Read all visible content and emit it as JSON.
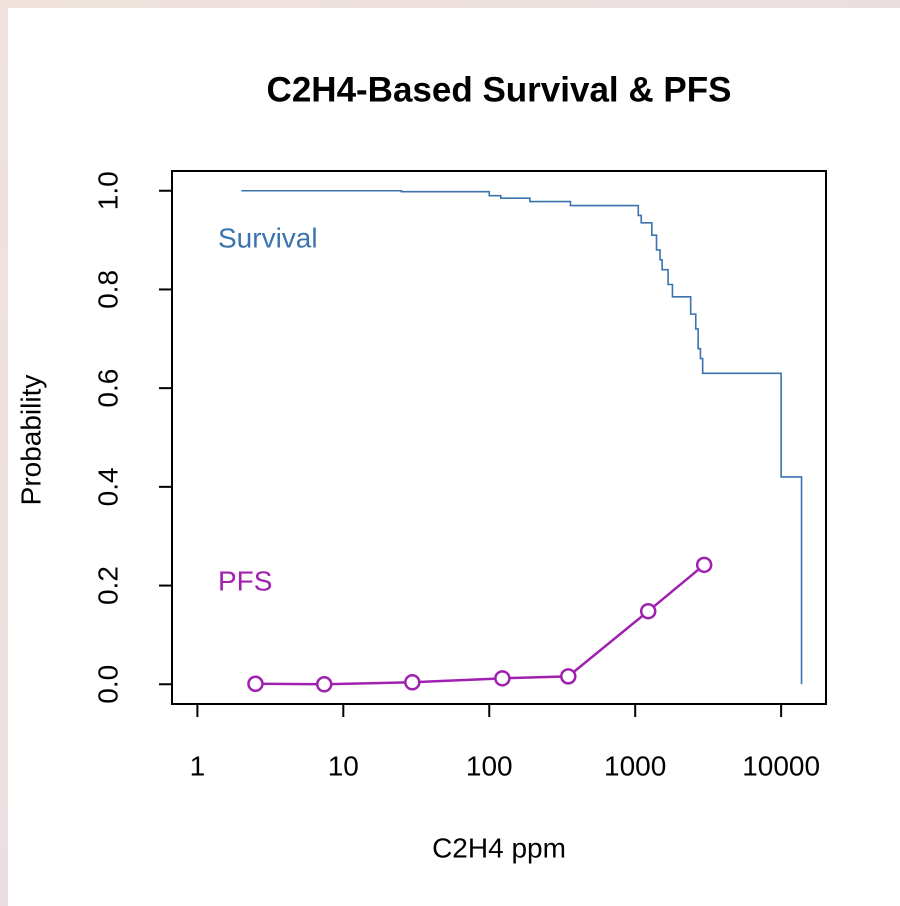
{
  "chart_data": {
    "type": "line",
    "title": "C2H4-Based Survival & PFS",
    "xlabel": "C2H4 ppm",
    "ylabel": "Probability",
    "xlog": true,
    "xlim": [
      0.67,
      20300
    ],
    "xticks": [
      1,
      10,
      100,
      1000,
      10000
    ],
    "ylim": [
      -0.04,
      1.04
    ],
    "yticks": [
      {
        "value": 0,
        "label": "0.0"
      },
      0.2,
      0.4,
      0.6,
      0.8,
      {
        "value": 1,
        "label": "1.0"
      }
    ],
    "series": [
      {
        "name": "Survival",
        "color": "#3a73ad",
        "step": true,
        "x": [
          2,
          25,
          100,
          120,
          190,
          360,
          1050,
          1100,
          1300,
          1400,
          1480,
          1530,
          1680,
          1800,
          2400,
          2600,
          2700,
          2800,
          2900,
          10000,
          13800
        ],
        "values": [
          1.0,
          0.998,
          0.99,
          0.985,
          0.978,
          0.97,
          0.95,
          0.935,
          0.91,
          0.88,
          0.86,
          0.84,
          0.81,
          0.785,
          0.75,
          0.72,
          0.68,
          0.66,
          0.63,
          0.42,
          0.0
        ]
      },
      {
        "name": "PFS",
        "color": "#a020b0",
        "markers": "circle",
        "x": [
          2.5,
          7.4,
          29.7,
          123,
          348,
          1228,
          2970
        ],
        "values": [
          0.001,
          0.0,
          0.004,
          0.012,
          0.016,
          0.148,
          0.242
        ]
      }
    ]
  }
}
